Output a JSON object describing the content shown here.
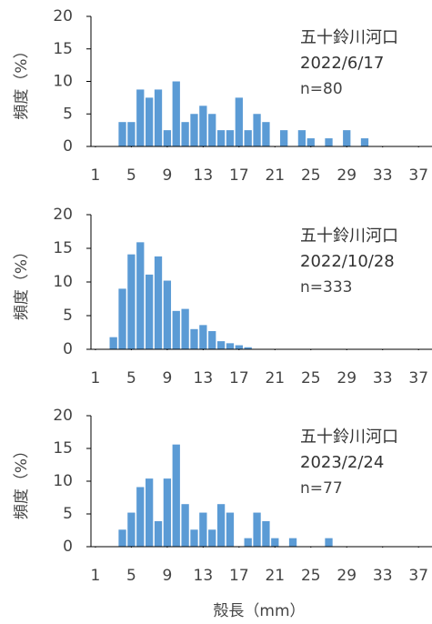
{
  "chart_data": [
    {
      "type": "bar",
      "annotations": [
        "五十鈴川河口",
        "2022/6/17",
        "n=80"
      ],
      "y_label": "頻度（%）",
      "x": [
        4,
        5,
        6,
        7,
        8,
        9,
        10,
        11,
        12,
        13,
        14,
        15,
        16,
        17,
        18,
        19,
        20,
        22,
        24,
        25,
        27,
        29,
        31
      ],
      "values": [
        3.75,
        3.75,
        8.75,
        7.5,
        8.75,
        2.5,
        10,
        3.75,
        5,
        6.25,
        5,
        2.5,
        2.5,
        7.5,
        2.5,
        5,
        3.75,
        2.5,
        2.5,
        1.25,
        1.25,
        2.5,
        1.25
      ],
      "color": "#5b9bd5",
      "xlim": [
        0.5,
        38.5
      ],
      "xticks": [
        1,
        5,
        9,
        13,
        17,
        21,
        25,
        29,
        33,
        37
      ],
      "ylim": [
        0,
        20
      ],
      "yticks": [
        0,
        5,
        10,
        15,
        20
      ]
    },
    {
      "type": "bar",
      "annotations": [
        "五十鈴川河口",
        "2022/10/28",
        "n=333"
      ],
      "y_label": "頻度（%）",
      "x": [
        3,
        4,
        5,
        6,
        7,
        8,
        9,
        10,
        11,
        12,
        13,
        14,
        15,
        16,
        17,
        18
      ],
      "values": [
        1.8,
        9,
        14.1,
        15.9,
        11.1,
        13.8,
        10.2,
        5.7,
        6,
        3,
        3.6,
        2.7,
        1.2,
        0.9,
        0.6,
        0.3
      ],
      "color": "#5b9bd5",
      "xlim": [
        0.5,
        38.5
      ],
      "xticks": [
        1,
        5,
        9,
        13,
        17,
        21,
        25,
        29,
        33,
        37
      ],
      "ylim": [
        0,
        20
      ],
      "yticks": [
        0,
        5,
        10,
        15,
        20
      ]
    },
    {
      "type": "bar",
      "annotations": [
        "五十鈴川河口",
        "2023/2/24",
        "n=77"
      ],
      "y_label": "頻度（%）",
      "x_label": "殻長（mm）",
      "x": [
        4,
        5,
        6,
        7,
        8,
        9,
        10,
        11,
        12,
        13,
        14,
        15,
        16,
        18,
        19,
        20,
        21,
        23,
        27
      ],
      "values": [
        2.6,
        5.2,
        9.1,
        10.4,
        3.9,
        10.4,
        15.6,
        6.5,
        2.6,
        5.2,
        2.6,
        6.5,
        5.2,
        1.3,
        5.2,
        3.9,
        1.3,
        1.3,
        1.3
      ],
      "color": "#5b9bd5",
      "xlim": [
        0.5,
        38.5
      ],
      "xticks": [
        1,
        5,
        9,
        13,
        17,
        21,
        25,
        29,
        33,
        37
      ],
      "ylim": [
        0,
        20
      ],
      "yticks": [
        0,
        5,
        10,
        15,
        20
      ]
    }
  ]
}
